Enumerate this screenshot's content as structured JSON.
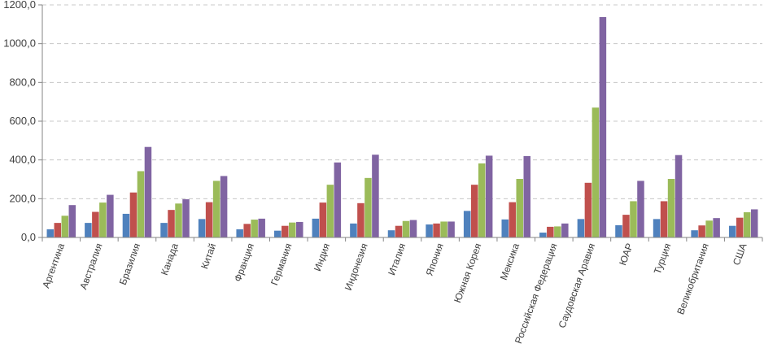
{
  "chart_data": {
    "type": "bar",
    "title": "",
    "xlabel": "",
    "ylabel": "",
    "ylim": [
      0,
      1200
    ],
    "yticks": [
      0,
      200,
      400,
      600,
      800,
      1000,
      1200
    ],
    "ytick_labels": [
      "0,0",
      "200,0",
      "400,0",
      "600,0",
      "800,0",
      "1000,0",
      "1200,0"
    ],
    "grid": "horizontal dashed",
    "legend": "none",
    "colors": [
      "#4f81bd",
      "#c0504d",
      "#9bbb59",
      "#8064a2"
    ],
    "categories": [
      "Аргентина",
      "Австралия",
      "Бразилия",
      "Канада",
      "Китай",
      "Франция",
      "Германия",
      "Индия",
      "Индонезия",
      "Италия",
      "Япония",
      "Южная Корея",
      "Мексика",
      "Российская Федерация",
      "Саудовская Аравия",
      "ЮАР",
      "Турция",
      "Великобритания",
      "США"
    ],
    "series": [
      {
        "values": [
          42,
          75,
          122,
          75,
          95,
          42,
          35,
          97,
          72,
          37,
          67,
          137,
          93,
          25,
          95,
          63,
          95,
          37,
          60
        ]
      },
      {
        "values": [
          75,
          132,
          232,
          142,
          182,
          70,
          60,
          180,
          177,
          60,
          72,
          272,
          182,
          55,
          282,
          117,
          187,
          62,
          102
        ]
      },
      {
        "values": [
          112,
          180,
          342,
          175,
          292,
          92,
          77,
          272,
          307,
          85,
          82,
          382,
          302,
          57,
          670,
          187,
          302,
          87,
          130
        ]
      },
      {
        "values": [
          167,
          220,
          467,
          197,
          317,
          97,
          80,
          387,
          427,
          90,
          82,
          422,
          420,
          72,
          1137,
          292,
          425,
          100,
          145
        ]
      }
    ]
  }
}
